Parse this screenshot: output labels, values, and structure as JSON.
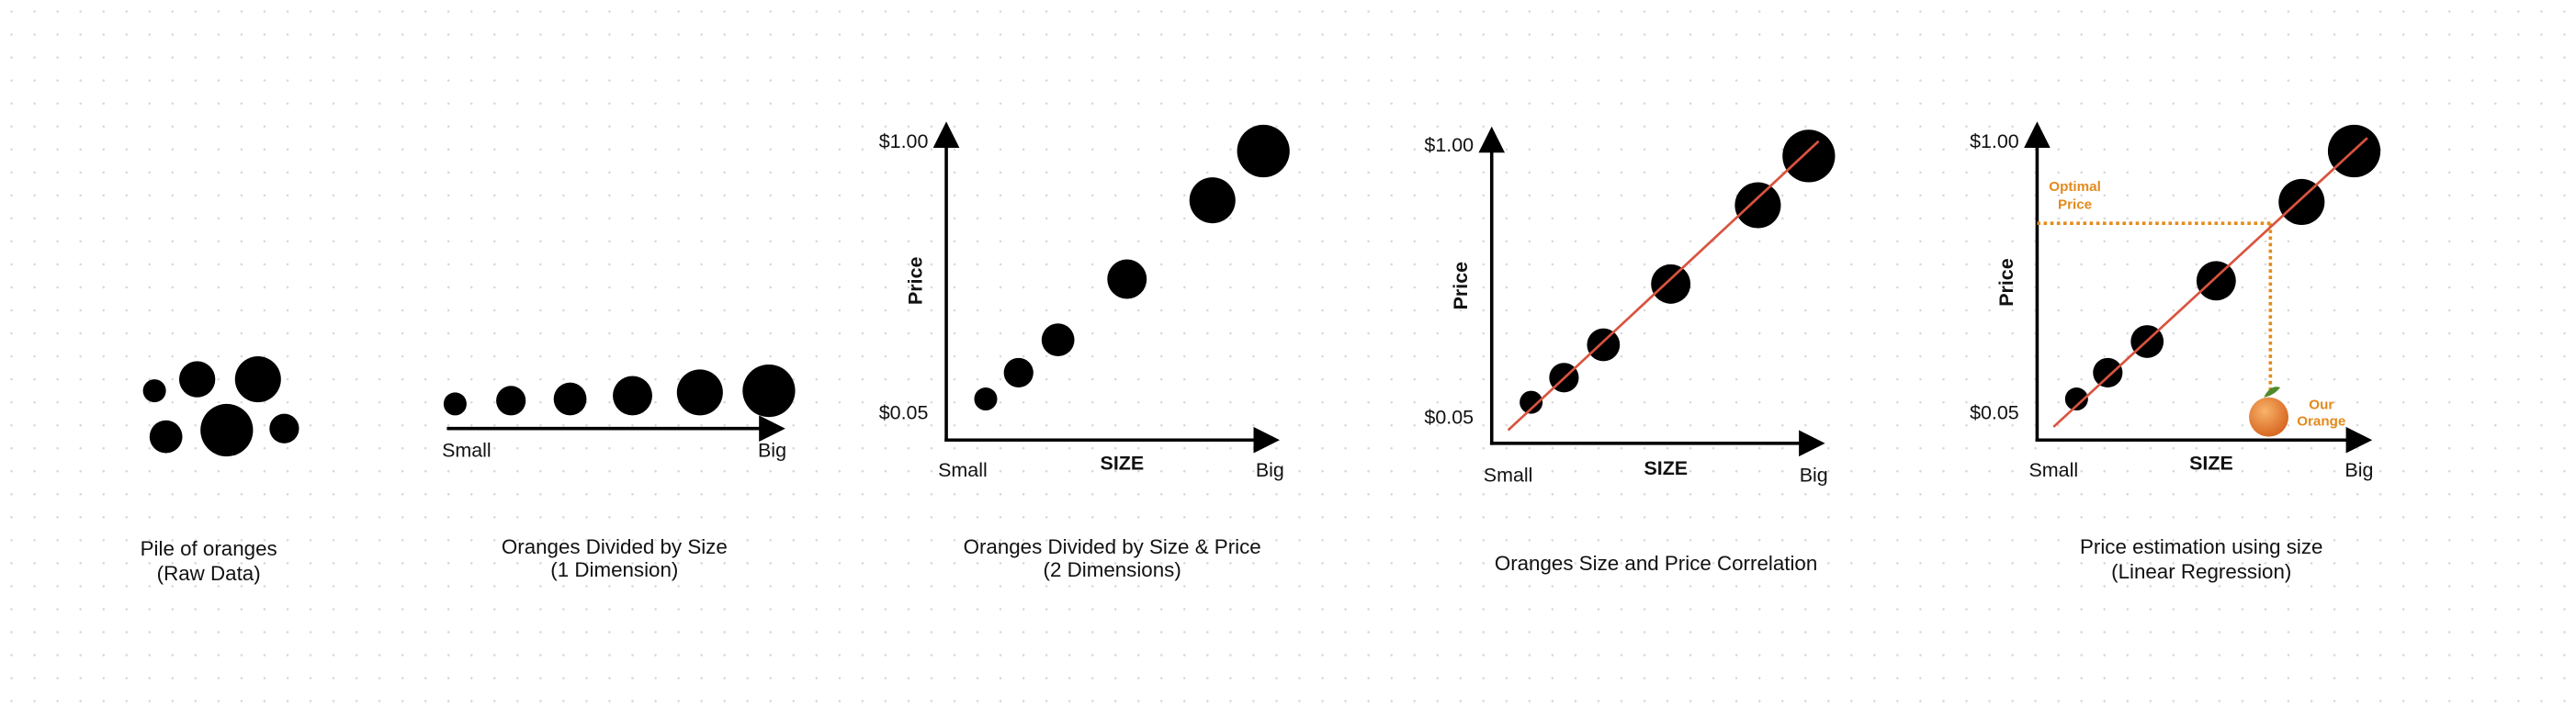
{
  "panels": [
    {
      "caption": [
        "Pile of oranges",
        "(Raw Data)"
      ]
    },
    {
      "caption": [
        "Oranges Divided by Size",
        "(1 Dimension)"
      ],
      "x_axis": {
        "min": "Small",
        "max": "Big"
      }
    },
    {
      "caption": [
        "Oranges Divided by Size & Price",
        "(2 Dimensions)"
      ],
      "x_axis": {
        "title": "SIZE",
        "min": "Small",
        "max": "Big"
      },
      "y_axis": {
        "title": "Price",
        "max": "$1.00",
        "min": "$0.05"
      }
    },
    {
      "caption": [
        "Oranges Size and Price Correlation"
      ],
      "x_axis": {
        "title": "SIZE",
        "min": "Small",
        "max": "Big"
      },
      "y_axis": {
        "title": "Price",
        "max": "$1.00",
        "min": "$0.05"
      }
    },
    {
      "caption": [
        "Price estimation using size",
        "(Linear Regression)"
      ],
      "x_axis": {
        "title": "SIZE",
        "min": "Small",
        "max": "Big"
      },
      "y_axis": {
        "title": "Price",
        "max": "$1.00",
        "min": "$0.05"
      },
      "annotations": [
        [
          "Optimal",
          "Price"
        ],
        [
          "Our",
          "Orange"
        ]
      ]
    }
  ]
}
